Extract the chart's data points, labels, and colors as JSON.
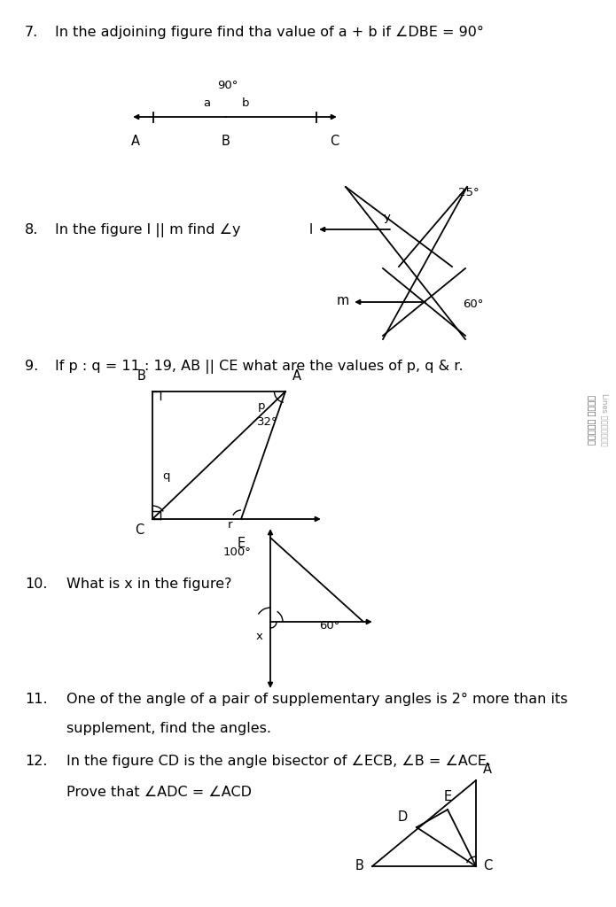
{
  "bg_color": "#ffffff",
  "text_color": "#000000",
  "fontsize_q": 11.5,
  "fontsize_label": 9.5,
  "q7_text": "In the adjoining figure find tha value of a + b if ∠DBE = 90°",
  "q8_text": "In the figure l || m find ∠y",
  "q9_text": "If p : q = 11 : 19, AB || CE what are the values of p, q & r.",
  "q10_text": "What is x in the figure?",
  "q11_text1": "One of the angle of a pair of supplementary angles is 2° more than its",
  "q11_text2": "supplement, find the angles.",
  "q12_text1": "In the figure CD is the angle bisector of ∠ECB, ∠B = ∠ACE.",
  "q12_text2": "Prove that ∠ADC = ∠ACD"
}
